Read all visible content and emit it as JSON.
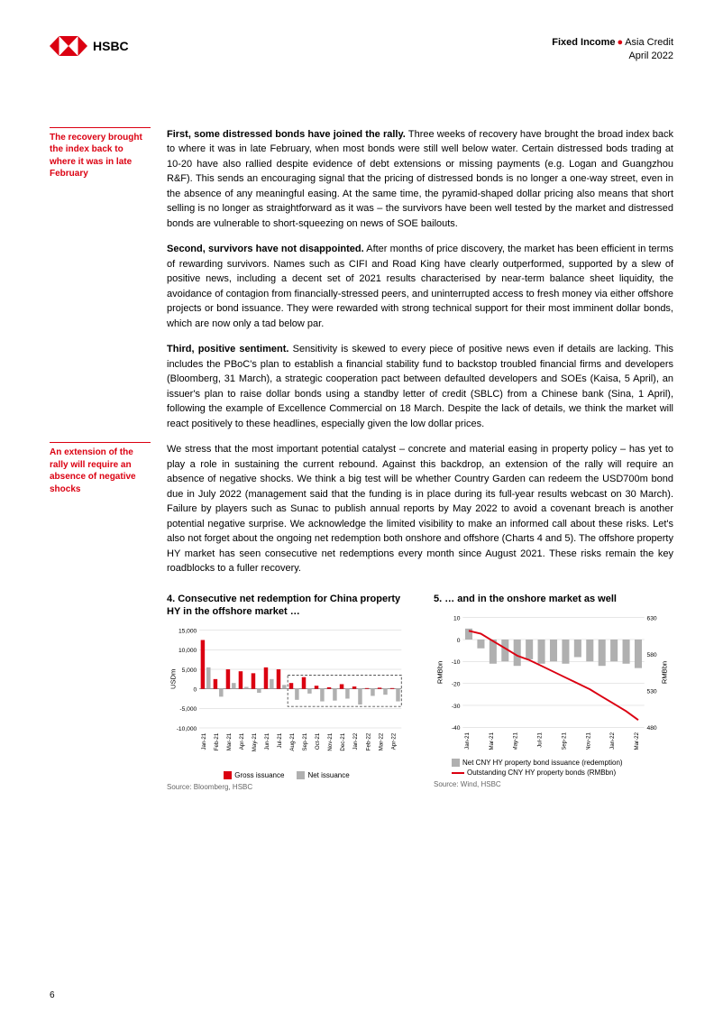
{
  "header": {
    "brand": "HSBC",
    "category_bold": "Fixed Income",
    "category_light": "Asia Credit",
    "date": "April 2022"
  },
  "sidenotes": {
    "note1": "The recovery brought the index back to where it was in late February",
    "note2": "An extension of the rally will require an absence of negative shocks"
  },
  "paragraphs": {
    "p1_lead": "First, some distressed bonds have joined the rally.",
    "p1_body": " Three weeks of recovery have brought the broad index back to where it was in late February, when most bonds were still well below water. Certain distressed bods trading at 10-20 have also rallied despite evidence of debt extensions or missing payments (e.g. Logan and Guangzhou R&F). This sends an encouraging signal that the pricing of distressed bonds is no longer a one-way street, even in the absence of any meaningful easing. At the same time, the pyramid-shaped dollar pricing also means that short selling is no longer as straightforward as it was – the survivors have been well tested by the market and distressed bonds are vulnerable to short-squeezing on news of SOE bailouts.",
    "p2_lead": "Second, survivors have not disappointed.",
    "p2_body": " After months of price discovery, the market has been efficient in terms of rewarding survivors. Names such as CIFI and Road King have clearly outperformed, supported by a slew of positive news, including a decent set of 2021 results characterised by near-term balance sheet liquidity, the avoidance of contagion from financially-stressed peers, and uninterrupted access to fresh money via either offshore projects or bond issuance. They were rewarded with strong technical support for their most imminent dollar bonds, which are now only a tad below par.",
    "p3_lead": "Third, positive sentiment.",
    "p3_body": " Sensitivity is skewed to every piece of positive news even if details are lacking. This includes the PBoC's plan to establish a financial stability fund to backstop troubled financial firms and developers (Bloomberg, 31 March), a strategic cooperation pact between defaulted developers and SOEs (Kaisa, 5 April), an issuer's plan to raise dollar bonds using a standby letter of credit (SBLC) from a Chinese bank (Sina, 1 April), following the example of Excellence Commercial on 18 March. Despite the lack of details, we think the market will react positively to these headlines, especially given the low dollar prices.",
    "p4_body": "We stress that the most important potential catalyst – concrete and material easing in property policy – has yet to play a role in sustaining the current rebound. Against this backdrop, an extension of the rally will require an absence of negative shocks. We think a big test will be whether Country Garden can redeem the USD700m bond due in July 2022 (management said that the funding is in place during its full-year results webcast on 30 March). Failure by players such as Sunac to publish annual reports by May 2022 to avoid a covenant breach is another potential negative surprise. We acknowledge the limited visibility to make an informed call about these risks. Let's also not forget about the ongoing net redemption both onshore and offshore (Charts 4 and 5). The offshore property HY market has seen consecutive net redemptions every month since August 2021. These risks remain the key roadblocks to a fuller recovery."
  },
  "chart4": {
    "title": "4. Consecutive net redemption for China property HY in the offshore market …",
    "type": "bar",
    "ylabel": "USDm",
    "ylim": [
      -10000,
      15000
    ],
    "yticks": [
      -10000,
      -5000,
      0,
      5000,
      10000,
      15000
    ],
    "categories": [
      "Jan-21",
      "Feb-21",
      "Mar-21",
      "Apr-21",
      "May-21",
      "Jun-21",
      "Jul-21",
      "Aug-21",
      "Sep-21",
      "Oct-21",
      "Nov-21",
      "Dec-21",
      "Jan-22",
      "Feb-22",
      "Mar-22",
      "Apr-22"
    ],
    "gross": [
      12500,
      2500,
      5000,
      4500,
      4000,
      5500,
      5000,
      1500,
      3000,
      800,
      400,
      1200,
      600,
      200,
      300,
      200
    ],
    "net": [
      5500,
      -2000,
      1500,
      500,
      -1000,
      2500,
      1000,
      -2800,
      -1200,
      -3200,
      -3000,
      -2500,
      -4000,
      -1800,
      -1500,
      -3200
    ],
    "colors": {
      "gross": "#db0011",
      "net": "#b0b0b0",
      "grid": "#cccccc",
      "dashbox": "#555555"
    },
    "dash_box": {
      "x_start_idx": 7,
      "x_end_idx": 15,
      "y_top": 3500,
      "y_bot": -4500
    },
    "legend": {
      "gross": "Gross issuance",
      "net": "Net issuance"
    },
    "source": "Source: Bloomberg, HSBC"
  },
  "chart5": {
    "title": "5. … and in the onshore market as well",
    "type": "combo-bar-line",
    "ylabel_left": "RMBbn",
    "ylabel_right": "RMBbn",
    "ylim_left": [
      -40,
      10
    ],
    "yticks_left": [
      -40,
      -30,
      -20,
      -10,
      0,
      10
    ],
    "ylim_right": [
      480,
      630
    ],
    "yticks_right": [
      480,
      530,
      580,
      630
    ],
    "categories": [
      "Jan-21",
      "Mar-21",
      "May-21",
      "Jul-21",
      "Sep-21",
      "Nov-21",
      "Jan-22",
      "Mar-22"
    ],
    "bars": [
      5,
      -4,
      -11,
      -10,
      -12,
      -9,
      -11,
      -10,
      -11,
      -8,
      -10,
      -12,
      -10,
      -11,
      -13
    ],
    "line": [
      612,
      608,
      598,
      588,
      578,
      572,
      564,
      556,
      548,
      540,
      532,
      522,
      512,
      502,
      490
    ],
    "colors": {
      "bar": "#b0b0b0",
      "line": "#db0011",
      "grid": "#cccccc"
    },
    "legend": {
      "bar": "Net CNY HY property bond issuance (redemption)",
      "line": "Outstanding CNY HY property bonds (RMBbn)"
    },
    "source": "Source: Wind, HSBC"
  },
  "page_number": "6"
}
